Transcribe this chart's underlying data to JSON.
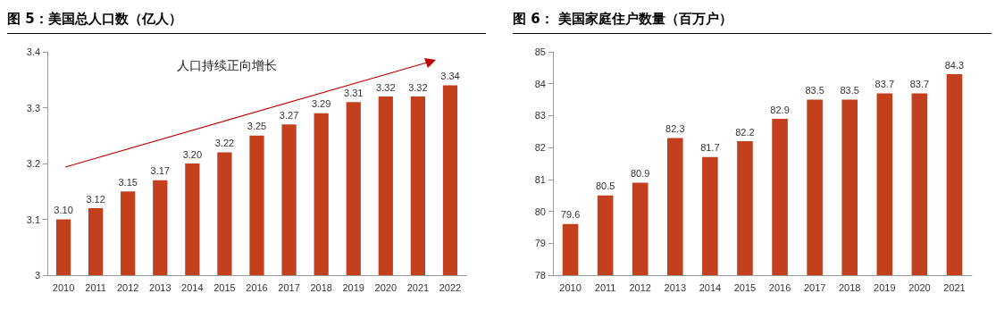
{
  "chart_data": [
    {
      "type": "bar",
      "title": "图 5：美国总人口数（亿人）",
      "categories": [
        "2010",
        "2011",
        "2012",
        "2013",
        "2014",
        "2015",
        "2016",
        "2017",
        "2018",
        "2019",
        "2020",
        "2021",
        "2022"
      ],
      "values": [
        3.1,
        3.12,
        3.15,
        3.17,
        3.2,
        3.22,
        3.25,
        3.27,
        3.29,
        3.31,
        3.32,
        3.32,
        3.34
      ],
      "value_labels": [
        "3.10",
        "3.12",
        "3.15",
        "3.17",
        "3.20",
        "3.22",
        "3.25",
        "3.27",
        "3.29",
        "3.31",
        "3.32",
        "3.32",
        "3.34"
      ],
      "color": "#c3401f",
      "ylim": [
        3,
        3.4
      ],
      "yticks": [
        3,
        3.1,
        3.2,
        3.3,
        3.4
      ],
      "grid": false,
      "annotations": [
        "人口持续正向增长"
      ]
    },
    {
      "type": "bar",
      "title": "图 6： 美国家庭住户数量（百万户）",
      "categories": [
        "2010",
        "2011",
        "2012",
        "2013",
        "2014",
        "2015",
        "2016",
        "2017",
        "2018",
        "2019",
        "2020",
        "2021"
      ],
      "values": [
        79.6,
        80.5,
        80.9,
        82.3,
        81.7,
        82.2,
        82.9,
        83.5,
        83.5,
        83.7,
        83.7,
        84.3
      ],
      "color": "#c3401f",
      "ylim": [
        78,
        85
      ],
      "yticks": [
        78,
        79,
        80,
        81,
        82,
        83,
        84,
        85
      ],
      "grid": false,
      "data_labels": true
    }
  ]
}
